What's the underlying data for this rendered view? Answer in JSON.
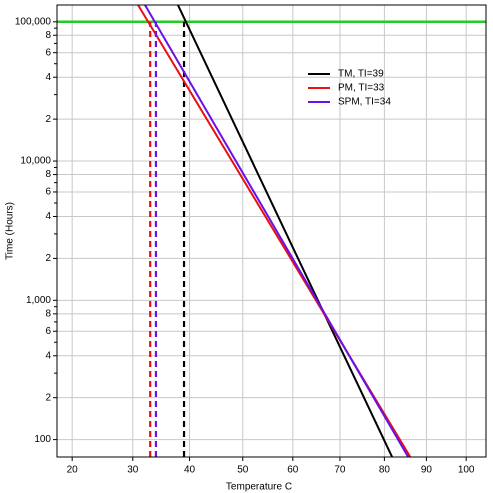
{
  "chart_data": {
    "type": "line",
    "xscale": "reciprocal-kelvin",
    "yscale": "log",
    "grid": true,
    "xlabel": "Temperature C",
    "ylabel": "Time (Hours)",
    "xlim": [
      17.6,
      105.2
    ],
    "ylim": [
      75,
      132000
    ],
    "xticks": [
      20,
      30,
      40,
      50,
      60,
      70,
      80,
      90,
      100
    ],
    "yticks": [
      100,
      {
        "value": 200,
        "label": "2"
      },
      {
        "value": 400,
        "label": "4"
      },
      {
        "value": 600,
        "label": "6"
      },
      {
        "value": 800,
        "label": "8"
      },
      {
        "value": 1000,
        "label": "1,000"
      },
      {
        "value": 2000,
        "label": "2"
      },
      {
        "value": 4000,
        "label": "4"
      },
      {
        "value": 6000,
        "label": "6"
      },
      {
        "value": 8000,
        "label": "8"
      },
      {
        "value": 10000,
        "label": "10,000"
      },
      {
        "value": 20000,
        "label": "2"
      },
      {
        "value": 40000,
        "label": "4"
      },
      {
        "value": 60000,
        "label": "6"
      },
      {
        "value": 80000,
        "label": "8"
      },
      {
        "value": 100000,
        "label": "100,000"
      }
    ],
    "yminorticks": [
      300,
      500,
      700,
      900,
      3000,
      5000,
      7000,
      9000,
      30000,
      50000,
      70000,
      90000
    ],
    "reference_line": {
      "value": 100000,
      "color": "#22cc22"
    },
    "legend": "upper right",
    "series": [
      {
        "name": "TM, TI=39",
        "color": "#000000",
        "ti": 39,
        "x": [
          37.9,
          81.8
        ],
        "values": [
          132000,
          75
        ]
      },
      {
        "name": "PM, TI=33",
        "color": "#e81010",
        "ti": 33,
        "x": [
          30.9,
          86.1
        ],
        "values": [
          132000,
          75
        ]
      },
      {
        "name": "SPM, TI=34",
        "color": "#6a10e8",
        "ti": 34,
        "x": [
          32.1,
          85.6
        ],
        "values": [
          132000,
          75
        ]
      }
    ]
  }
}
